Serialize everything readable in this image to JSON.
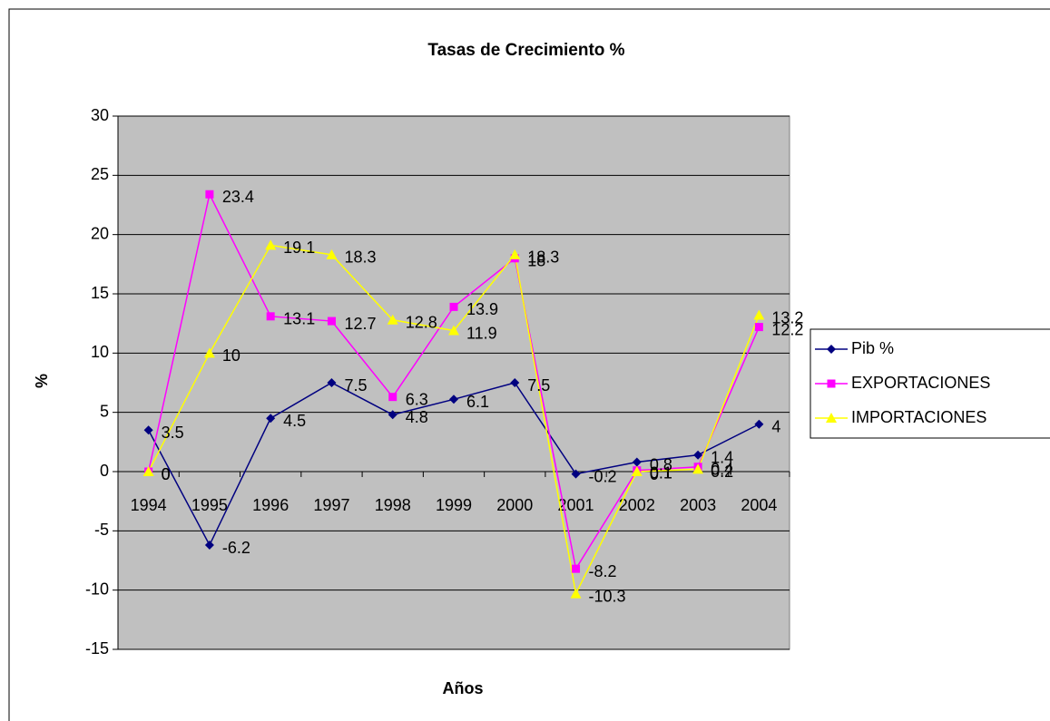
{
  "chart_data": {
    "type": "line",
    "title": "Tasas de Crecimiento %",
    "x_label": "Años",
    "y_label": "%",
    "categories": [
      "1994",
      "1995",
      "1996",
      "1997",
      "1998",
      "1999",
      "2000",
      "2001",
      "2002",
      "2003",
      "2004"
    ],
    "series": [
      {
        "name": "Pib %",
        "color": "#000080",
        "marker": "diamond",
        "values": [
          3.5,
          -6.2,
          4.5,
          7.5,
          4.8,
          6.1,
          7.5,
          -0.2,
          0.8,
          1.4,
          4
        ]
      },
      {
        "name": "EXPORTACIONES",
        "color": "#ff00ff",
        "marker": "square",
        "values": [
          0,
          23.4,
          13.1,
          12.7,
          6.3,
          13.9,
          18,
          -8.2,
          0.1,
          0.4,
          12.2
        ]
      },
      {
        "name": "IMPORTACIONES",
        "color": "#ffff00",
        "marker": "triangle",
        "values": [
          0,
          10,
          19.1,
          18.3,
          12.8,
          11.9,
          18.3,
          -10.3,
          0,
          0.2,
          13.2
        ]
      }
    ],
    "ylim": [
      -15,
      30
    ],
    "yticks": [
      -15,
      -10,
      -5,
      0,
      5,
      10,
      15,
      20,
      25,
      30
    ],
    "grid": true,
    "legend": "right",
    "plot_background": "#c0c0c0"
  }
}
